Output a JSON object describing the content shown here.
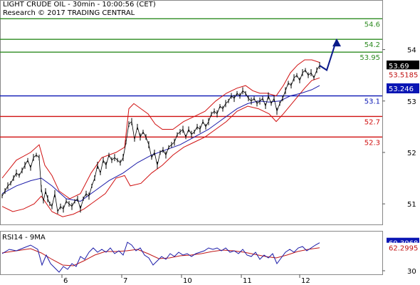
{
  "header": {
    "title_line": "LIGHT CRUDE OIL - 30min - 10:00:56 (CET)",
    "credit_line": "Research © 2017 TRADING CENTRAL"
  },
  "colors": {
    "resistance": "#2e8b22",
    "pivot": "#0a16b4",
    "support": "#d01010",
    "price": "#000000",
    "bollinger": "#d01010",
    "moving_average": "#1a1aa8",
    "rsi": "#1a1aa8",
    "rsi_ma": "#c01818",
    "arrow": "#0a1a8a",
    "last_price_tag": "#000000",
    "pivot_tag": "#0a16b4",
    "band_tag": "#c01010",
    "rsi_tag": "#0a16b4",
    "rsi_ma_tag": "#c01010"
  },
  "chart_data": {
    "type": "line",
    "title": "LIGHT CRUDE OIL - 30min - 10:00:56 (CET)",
    "x_tick_labels": [
      "6",
      "7",
      "10",
      "11",
      "12"
    ],
    "y_tick_labels": [
      "54",
      "53",
      "52",
      "51"
    ],
    "ylim": [
      50.6,
      54.95
    ],
    "last_price": 53.69,
    "last_price_label": "53.69",
    "band_value_label": "53.5185",
    "pivot_value_label": "53.246",
    "levels": [
      {
        "label": "54.6",
        "value": 54.6,
        "kind": "resistance"
      },
      {
        "label": "54.2",
        "value": 54.2,
        "kind": "resistance"
      },
      {
        "label": "53.95",
        "value": 53.95,
        "kind": "resistance"
      },
      {
        "label": "53.1",
        "value": 53.1,
        "kind": "pivot"
      },
      {
        "label": "52.7",
        "value": 52.7,
        "kind": "support"
      },
      {
        "label": "52.3",
        "value": 52.3,
        "kind": "support"
      }
    ],
    "price_series": [
      [
        0,
        51.15
      ],
      [
        4,
        51.25
      ],
      [
        8,
        51.35
      ],
      [
        12,
        51.4
      ],
      [
        16,
        51.5
      ],
      [
        20,
        51.6
      ],
      [
        24,
        51.55
      ],
      [
        28,
        51.65
      ],
      [
        32,
        51.75
      ],
      [
        36,
        51.85
      ],
      [
        40,
        51.7
      ],
      [
        44,
        51.9
      ],
      [
        48,
        51.95
      ],
      [
        52,
        51.9
      ],
      [
        55,
        51.3
      ],
      [
        58,
        51.05
      ],
      [
        61,
        51.25
      ],
      [
        64,
        51.1
      ],
      [
        67,
        51.0
      ],
      [
        70,
        50.95
      ],
      [
        74,
        51.2
      ],
      [
        78,
        50.85
      ],
      [
        82,
        50.95
      ],
      [
        86,
        50.9
      ],
      [
        90,
        51.05
      ],
      [
        94,
        51.0
      ],
      [
        98,
        50.95
      ],
      [
        102,
        51.05
      ],
      [
        106,
        51.1
      ],
      [
        110,
        50.9
      ],
      [
        114,
        51.1
      ],
      [
        118,
        51.2
      ],
      [
        122,
        51.15
      ],
      [
        126,
        51.35
      ],
      [
        130,
        51.5
      ],
      [
        134,
        51.75
      ],
      [
        138,
        51.6
      ],
      [
        142,
        51.85
      ],
      [
        146,
        51.75
      ],
      [
        150,
        51.95
      ],
      [
        154,
        51.85
      ],
      [
        158,
        51.9
      ],
      [
        162,
        51.85
      ],
      [
        166,
        51.8
      ],
      [
        170,
        51.9
      ],
      [
        174,
        52.2
      ],
      [
        178,
        52.55
      ],
      [
        182,
        52.6
      ],
      [
        186,
        52.25
      ],
      [
        190,
        52.5
      ],
      [
        194,
        52.3
      ],
      [
        198,
        52.4
      ],
      [
        202,
        52.3
      ],
      [
        206,
        52.15
      ],
      [
        210,
        51.9
      ],
      [
        214,
        52.0
      ],
      [
        218,
        51.75
      ],
      [
        222,
        52.0
      ],
      [
        226,
        52.05
      ],
      [
        230,
        51.95
      ],
      [
        234,
        52.1
      ],
      [
        238,
        52.15
      ],
      [
        242,
        52.2
      ],
      [
        246,
        52.35
      ],
      [
        250,
        52.4
      ],
      [
        254,
        52.45
      ],
      [
        258,
        52.3
      ],
      [
        262,
        52.45
      ],
      [
        266,
        52.35
      ],
      [
        270,
        52.4
      ],
      [
        274,
        52.5
      ],
      [
        278,
        52.45
      ],
      [
        282,
        52.6
      ],
      [
        286,
        52.5
      ],
      [
        290,
        52.6
      ],
      [
        294,
        52.75
      ],
      [
        298,
        52.8
      ],
      [
        302,
        52.75
      ],
      [
        306,
        52.9
      ],
      [
        310,
        52.85
      ],
      [
        314,
        52.95
      ],
      [
        318,
        53.0
      ],
      [
        322,
        53.1
      ],
      [
        326,
        53.05
      ],
      [
        330,
        53.15
      ],
      [
        334,
        53.1
      ],
      [
        338,
        53.2
      ],
      [
        342,
        53.15
      ],
      [
        346,
        53.05
      ],
      [
        350,
        53.0
      ],
      [
        354,
        53.05
      ],
      [
        358,
        52.95
      ],
      [
        362,
        53.0
      ],
      [
        366,
        53.05
      ],
      [
        370,
        52.9
      ],
      [
        374,
        53.1
      ],
      [
        378,
        52.95
      ],
      [
        382,
        53.05
      ],
      [
        386,
        52.8
      ],
      [
        390,
        52.95
      ],
      [
        394,
        53.05
      ],
      [
        398,
        53.2
      ],
      [
        402,
        53.35
      ],
      [
        406,
        53.3
      ],
      [
        410,
        53.45
      ],
      [
        414,
        53.5
      ],
      [
        418,
        53.4
      ],
      [
        422,
        53.55
      ],
      [
        426,
        53.6
      ],
      [
        430,
        53.5
      ],
      [
        434,
        53.55
      ],
      [
        438,
        53.45
      ],
      [
        442,
        53.6
      ],
      [
        446,
        53.69
      ]
    ],
    "upper_band_series": [
      [
        0,
        51.5
      ],
      [
        20,
        51.85
      ],
      [
        40,
        52.0
      ],
      [
        52,
        52.15
      ],
      [
        60,
        51.75
      ],
      [
        70,
        51.55
      ],
      [
        80,
        51.25
      ],
      [
        95,
        51.1
      ],
      [
        110,
        51.2
      ],
      [
        125,
        51.6
      ],
      [
        140,
        51.9
      ],
      [
        160,
        52.0
      ],
      [
        172,
        52.1
      ],
      [
        178,
        52.85
      ],
      [
        185,
        52.95
      ],
      [
        195,
        52.85
      ],
      [
        205,
        52.75
      ],
      [
        215,
        52.55
      ],
      [
        225,
        52.45
      ],
      [
        240,
        52.45
      ],
      [
        255,
        52.6
      ],
      [
        270,
        52.7
      ],
      [
        285,
        52.8
      ],
      [
        300,
        53.0
      ],
      [
        315,
        53.15
      ],
      [
        330,
        53.25
      ],
      [
        342,
        53.3
      ],
      [
        352,
        53.2
      ],
      [
        362,
        53.15
      ],
      [
        372,
        53.15
      ],
      [
        385,
        53.1
      ],
      [
        395,
        53.3
      ],
      [
        405,
        53.55
      ],
      [
        415,
        53.7
      ],
      [
        425,
        53.8
      ],
      [
        435,
        53.8
      ],
      [
        446,
        53.75
      ]
    ],
    "lower_band_series": [
      [
        0,
        50.95
      ],
      [
        15,
        50.85
      ],
      [
        30,
        50.9
      ],
      [
        45,
        51.0
      ],
      [
        55,
        51.15
      ],
      [
        70,
        50.85
      ],
      [
        85,
        50.75
      ],
      [
        100,
        50.8
      ],
      [
        115,
        50.9
      ],
      [
        130,
        51.05
      ],
      [
        145,
        51.2
      ],
      [
        160,
        51.5
      ],
      [
        172,
        51.55
      ],
      [
        180,
        51.35
      ],
      [
        195,
        51.4
      ],
      [
        210,
        51.6
      ],
      [
        225,
        51.75
      ],
      [
        240,
        51.95
      ],
      [
        255,
        52.1
      ],
      [
        270,
        52.2
      ],
      [
        285,
        52.3
      ],
      [
        300,
        52.45
      ],
      [
        315,
        52.6
      ],
      [
        330,
        52.8
      ],
      [
        345,
        52.9
      ],
      [
        360,
        52.85
      ],
      [
        375,
        52.75
      ],
      [
        385,
        52.6
      ],
      [
        395,
        52.75
      ],
      [
        410,
        53.0
      ],
      [
        425,
        53.25
      ],
      [
        435,
        53.4
      ],
      [
        446,
        53.45
      ]
    ],
    "ma_series": [
      [
        0,
        51.2
      ],
      [
        20,
        51.35
      ],
      [
        40,
        51.45
      ],
      [
        55,
        51.5
      ],
      [
        70,
        51.35
      ],
      [
        90,
        51.1
      ],
      [
        110,
        51.05
      ],
      [
        130,
        51.25
      ],
      [
        150,
        51.45
      ],
      [
        170,
        51.6
      ],
      [
        190,
        51.8
      ],
      [
        210,
        51.95
      ],
      [
        230,
        52.05
      ],
      [
        250,
        52.15
      ],
      [
        270,
        52.3
      ],
      [
        290,
        52.45
      ],
      [
        310,
        52.65
      ],
      [
        330,
        52.85
      ],
      [
        345,
        52.95
      ],
      [
        360,
        53.0
      ],
      [
        375,
        52.98
      ],
      [
        390,
        53.0
      ],
      [
        405,
        53.1
      ],
      [
        420,
        53.15
      ],
      [
        435,
        53.22
      ],
      [
        446,
        53.3
      ]
    ],
    "forecast_arrow": [
      [
        446,
        53.69
      ],
      [
        456,
        53.6
      ],
      [
        470,
        54.2
      ]
    ],
    "rsi_panel": {
      "title": "RSI14 - 9MA",
      "y_tick_labels": [
        "30"
      ],
      "ylim": [
        25,
        85
      ],
      "rsi_value_label": "69.3068",
      "rsi_ma_value_label": "62.2995",
      "rsi_series": [
        [
          0,
          54
        ],
        [
          10,
          60
        ],
        [
          20,
          58
        ],
        [
          30,
          62
        ],
        [
          40,
          66
        ],
        [
          50,
          60
        ],
        [
          56,
          38
        ],
        [
          62,
          52
        ],
        [
          68,
          40
        ],
        [
          74,
          34
        ],
        [
          80,
          28
        ],
        [
          86,
          36
        ],
        [
          92,
          32
        ],
        [
          98,
          40
        ],
        [
          104,
          36
        ],
        [
          110,
          50
        ],
        [
          116,
          46
        ],
        [
          122,
          56
        ],
        [
          128,
          62
        ],
        [
          134,
          56
        ],
        [
          140,
          60
        ],
        [
          146,
          56
        ],
        [
          152,
          62
        ],
        [
          158,
          54
        ],
        [
          164,
          58
        ],
        [
          170,
          52
        ],
        [
          176,
          70
        ],
        [
          182,
          66
        ],
        [
          188,
          58
        ],
        [
          194,
          62
        ],
        [
          200,
          52
        ],
        [
          206,
          48
        ],
        [
          212,
          38
        ],
        [
          218,
          44
        ],
        [
          224,
          50
        ],
        [
          230,
          46
        ],
        [
          236,
          54
        ],
        [
          242,
          50
        ],
        [
          248,
          56
        ],
        [
          254,
          52
        ],
        [
          260,
          54
        ],
        [
          266,
          50
        ],
        [
          272,
          54
        ],
        [
          278,
          56
        ],
        [
          284,
          58
        ],
        [
          290,
          62
        ],
        [
          296,
          60
        ],
        [
          302,
          62
        ],
        [
          308,
          58
        ],
        [
          314,
          62
        ],
        [
          320,
          56
        ],
        [
          326,
          58
        ],
        [
          332,
          54
        ],
        [
          338,
          60
        ],
        [
          344,
          52
        ],
        [
          350,
          50
        ],
        [
          356,
          56
        ],
        [
          362,
          46
        ],
        [
          368,
          52
        ],
        [
          374,
          48
        ],
        [
          380,
          54
        ],
        [
          386,
          40
        ],
        [
          392,
          48
        ],
        [
          398,
          56
        ],
        [
          404,
          60
        ],
        [
          410,
          56
        ],
        [
          416,
          62
        ],
        [
          422,
          64
        ],
        [
          428,
          58
        ],
        [
          434,
          62
        ],
        [
          440,
          66
        ],
        [
          446,
          69.3
        ]
      ],
      "rsi_ma_series": [
        [
          0,
          55
        ],
        [
          20,
          58
        ],
        [
          40,
          61
        ],
        [
          55,
          55
        ],
        [
          70,
          46
        ],
        [
          85,
          38
        ],
        [
          100,
          37
        ],
        [
          115,
          44
        ],
        [
          130,
          52
        ],
        [
          145,
          57
        ],
        [
          160,
          57
        ],
        [
          175,
          58
        ],
        [
          190,
          60
        ],
        [
          205,
          54
        ],
        [
          220,
          47
        ],
        [
          235,
          48
        ],
        [
          250,
          51
        ],
        [
          265,
          52
        ],
        [
          280,
          54
        ],
        [
          295,
          57
        ],
        [
          310,
          59
        ],
        [
          325,
          58
        ],
        [
          340,
          56
        ],
        [
          355,
          53
        ],
        [
          370,
          50
        ],
        [
          385,
          48
        ],
        [
          400,
          52
        ],
        [
          415,
          57
        ],
        [
          430,
          60
        ],
        [
          446,
          62.3
        ]
      ]
    }
  }
}
